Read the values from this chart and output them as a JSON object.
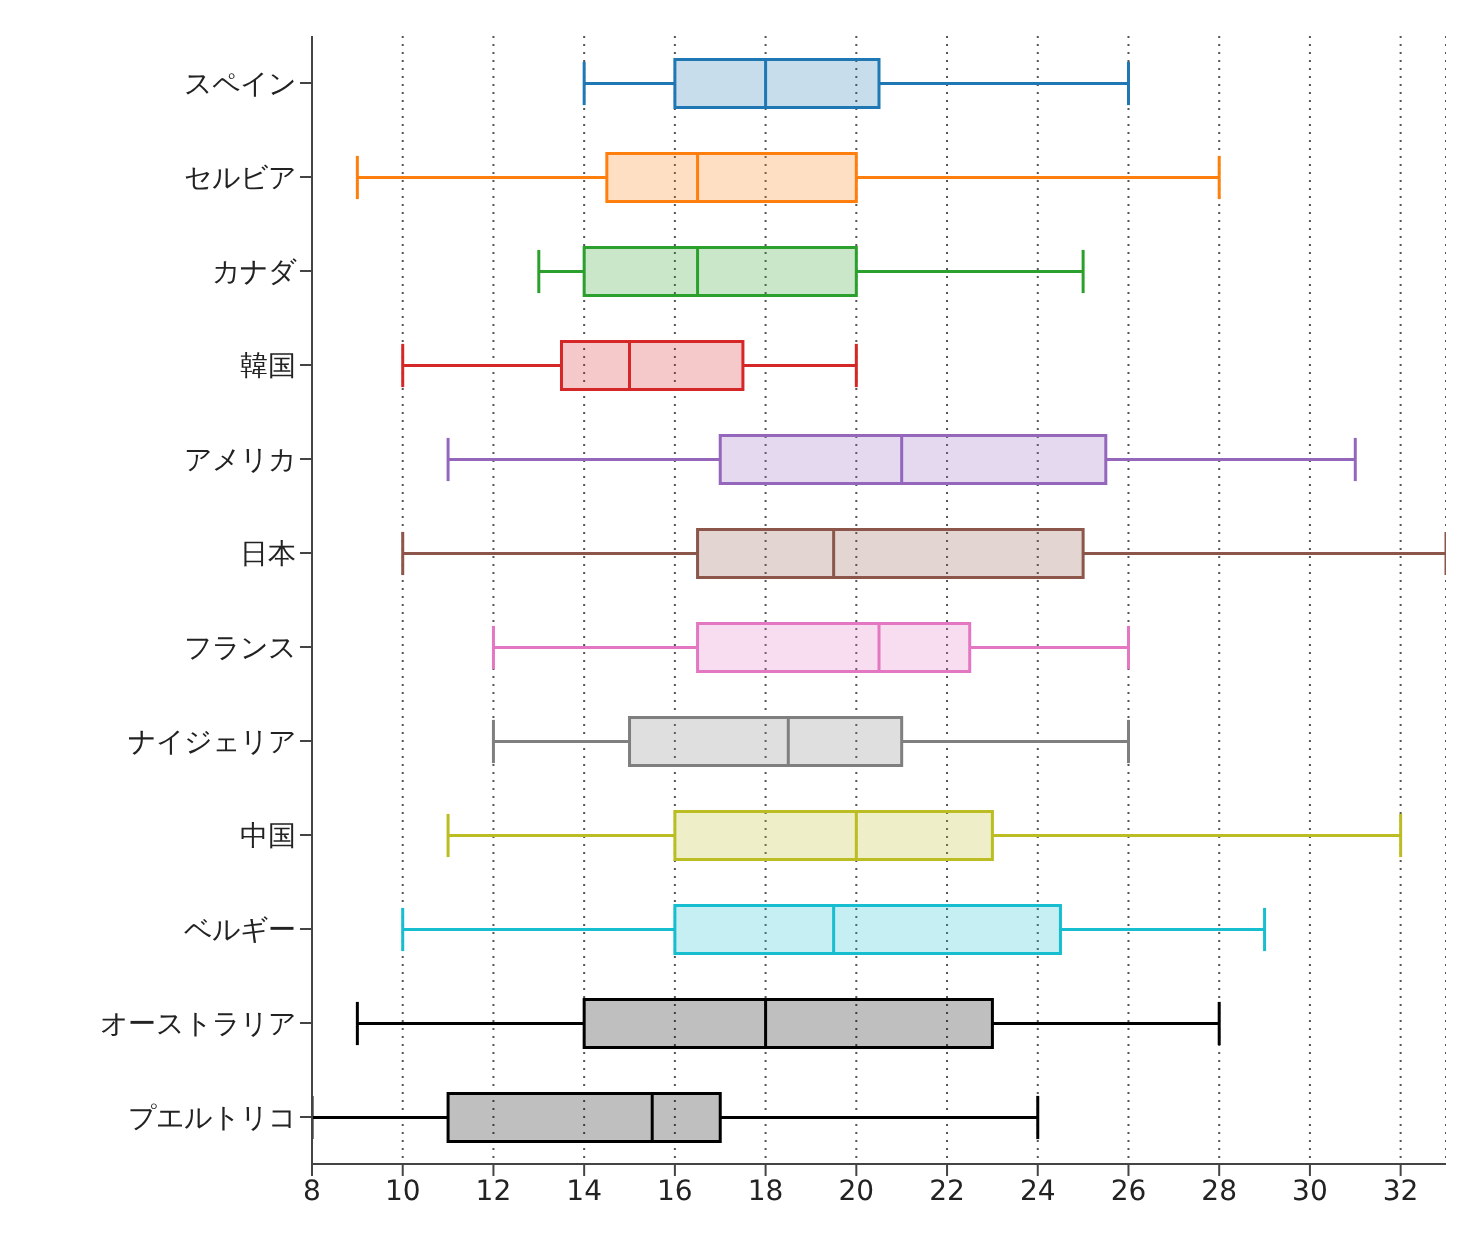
{
  "chart_data": {
    "type": "box",
    "orientation": "horizontal",
    "categories": [
      "スペイン",
      "セルビア",
      "カナダ",
      "韓国",
      "アメリカ",
      "日本",
      "フランス",
      "ナイジェリア",
      "中国",
      "ベルギー",
      "オーストラリア",
      "プエルトリコ"
    ],
    "colors": [
      "#1f77b4",
      "#ff7f0e",
      "#2ca02c",
      "#d62728",
      "#9467bd",
      "#8c564b",
      "#e377c2",
      "#7f7f7f",
      "#bcbd22",
      "#17becf",
      "#000000",
      "#000000"
    ],
    "boxes": [
      {
        "low": 14,
        "q1": 16,
        "median": 18,
        "q3": 20.5,
        "high": 26
      },
      {
        "low": 9,
        "q1": 14.5,
        "median": 16.5,
        "q3": 20,
        "high": 28
      },
      {
        "low": 13,
        "q1": 14,
        "median": 16.5,
        "q3": 20,
        "high": 25
      },
      {
        "low": 10,
        "q1": 13.5,
        "median": 15,
        "q3": 17.5,
        "high": 20
      },
      {
        "low": 11,
        "q1": 17,
        "median": 21,
        "q3": 25.5,
        "high": 31
      },
      {
        "low": 10,
        "q1": 16.5,
        "median": 19.5,
        "q3": 25,
        "high": 33
      },
      {
        "low": 12,
        "q1": 16.5,
        "median": 20.5,
        "q3": 22.5,
        "high": 26
      },
      {
        "low": 12,
        "q1": 15,
        "median": 18.5,
        "q3": 21,
        "high": 26
      },
      {
        "low": 11,
        "q1": 16,
        "median": 20,
        "q3": 23,
        "high": 32
      },
      {
        "low": 10,
        "q1": 16,
        "median": 19.5,
        "q3": 24.5,
        "high": 29
      },
      {
        "low": 9,
        "q1": 14,
        "median": 18,
        "q3": 23,
        "high": 28
      },
      {
        "low": 8,
        "q1": 11,
        "median": 15.5,
        "q3": 17,
        "high": 24
      }
    ],
    "xlim": [
      8,
      33
    ],
    "xticks": [
      8,
      10,
      12,
      14,
      16,
      18,
      20,
      22,
      24,
      26,
      28,
      30,
      32
    ],
    "grid": "x"
  }
}
